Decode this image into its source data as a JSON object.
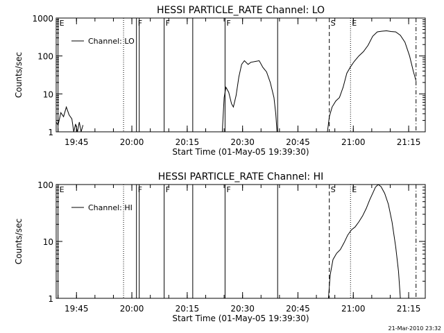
{
  "footer": {
    "timestamp": "21-Mar-2010 23:32"
  },
  "chart_data": [
    {
      "type": "line",
      "title": "HESSI PARTICLE_RATE Channel: LO",
      "xlabel": "Start Time (01-May-05 19:39:30)",
      "ylabel": "Counts/sec",
      "yscale": "log",
      "xlim": [
        "19:39:30",
        "21:19:30"
      ],
      "ylim": [
        1,
        1000
      ],
      "x_ticks": [
        "19:45",
        "20:00",
        "20:15",
        "20:30",
        "20:45",
        "21:00",
        "21:15"
      ],
      "y_ticks": [
        "1",
        "10",
        "100",
        "1000"
      ],
      "legend": {
        "label": "Channel: LO",
        "position": "top-left"
      },
      "markers": [
        {
          "time": "19:40:00",
          "label": "E",
          "style": "solid"
        },
        {
          "time": "19:57:45",
          "label": "",
          "style": "dotted"
        },
        {
          "time": "20:01:15",
          "label": "F",
          "style": "solid"
        },
        {
          "time": "20:02:00",
          "label": "",
          "style": "solid"
        },
        {
          "time": "20:08:45",
          "label": "F",
          "style": "solid"
        },
        {
          "time": "20:16:30",
          "label": "",
          "style": "solid"
        },
        {
          "time": "20:25:15",
          "label": "F",
          "style": "solid"
        },
        {
          "time": "20:39:30",
          "label": "",
          "style": "solid"
        },
        {
          "time": "20:53:30",
          "label": "S",
          "style": "dashed"
        },
        {
          "time": "20:59:15",
          "label": "E",
          "style": "dotted"
        },
        {
          "time": "21:17:00",
          "label": "",
          "style": "dashdot"
        }
      ],
      "series": [
        {
          "segments": [
            [
              [
                "19:39:30",
                1.8
              ],
              [
                "19:40:00",
                1.5
              ],
              [
                "19:40:45",
                3.2
              ],
              [
                "19:41:30",
                2.5
              ],
              [
                "19:42:15",
                4.5
              ],
              [
                "19:43:00",
                2.8
              ],
              [
                "19:43:45",
                2.2
              ],
              [
                "19:44:15",
                1.0
              ],
              [
                "19:44:45",
                1.6
              ],
              [
                "19:45:15",
                1.0
              ],
              [
                "19:45:45",
                1.8
              ],
              [
                "19:46:15",
                1.0
              ],
              [
                "19:46:45",
                1.5
              ]
            ],
            [
              [
                "20:24:30",
                1.0
              ],
              [
                "20:25:00",
                8.0
              ],
              [
                "20:25:30",
                15
              ],
              [
                "20:26:15",
                11
              ],
              [
                "20:27:00",
                5.5
              ],
              [
                "20:27:30",
                4.5
              ],
              [
                "20:28:15",
                9
              ],
              [
                "20:29:00",
                28
              ],
              [
                "20:29:45",
                60
              ],
              [
                "20:30:30",
                75
              ],
              [
                "20:31:30",
                60
              ],
              [
                "20:32:15",
                68
              ],
              [
                "20:33:30",
                72
              ],
              [
                "20:34:30",
                75
              ],
              [
                "20:35:30",
                50
              ],
              [
                "20:36:30",
                38
              ],
              [
                "20:37:30",
                20
              ],
              [
                "20:38:30",
                8
              ],
              [
                "20:39:00",
                3
              ],
              [
                "20:39:20",
                1.0
              ]
            ],
            [
              [
                "20:53:00",
                1.0
              ],
              [
                "20:53:30",
                2.5
              ],
              [
                "20:54:15",
                4.5
              ],
              [
                "20:55:15",
                6.5
              ],
              [
                "20:56:15",
                8
              ],
              [
                "20:57:15",
                15
              ],
              [
                "20:58:15",
                35
              ],
              [
                "20:59:15",
                52
              ],
              [
                "21:00:15",
                72
              ],
              [
                "21:01:30",
                100
              ],
              [
                "21:02:45",
                130
              ],
              [
                "21:04:00",
                190
              ],
              [
                "21:05:15",
                330
              ],
              [
                "21:06:30",
                430
              ],
              [
                "21:07:45",
                450
              ],
              [
                "21:09:00",
                460
              ],
              [
                "21:10:15",
                440
              ],
              [
                "21:11:30",
                430
              ],
              [
                "21:12:45",
                350
              ],
              [
                "21:14:00",
                230
              ],
              [
                "21:15:15",
                100
              ],
              [
                "21:16:15",
                40
              ],
              [
                "21:17:00",
                22
              ]
            ]
          ]
        }
      ]
    },
    {
      "type": "line",
      "title": "HESSI PARTICLE_RATE Channel: HI",
      "xlabel": "Start Time (01-May-05 19:39:30)",
      "ylabel": "Counts/sec",
      "yscale": "log",
      "xlim": [
        "19:39:30",
        "21:19:30"
      ],
      "ylim": [
        1,
        100
      ],
      "x_ticks": [
        "19:45",
        "20:00",
        "20:15",
        "20:30",
        "20:45",
        "21:00",
        "21:15"
      ],
      "y_ticks": [
        "1",
        "10",
        "100"
      ],
      "legend": {
        "label": "Channel: HI",
        "position": "top-left"
      },
      "markers": [
        {
          "time": "19:40:00",
          "label": "E",
          "style": "solid"
        },
        {
          "time": "19:57:45",
          "label": "",
          "style": "dotted"
        },
        {
          "time": "20:01:15",
          "label": "F",
          "style": "solid"
        },
        {
          "time": "20:02:00",
          "label": "",
          "style": "solid"
        },
        {
          "time": "20:08:45",
          "label": "F",
          "style": "solid"
        },
        {
          "time": "20:16:30",
          "label": "",
          "style": "solid"
        },
        {
          "time": "20:25:15",
          "label": "F",
          "style": "solid"
        },
        {
          "time": "20:39:30",
          "label": "",
          "style": "solid"
        },
        {
          "time": "20:53:30",
          "label": "S",
          "style": "dashed"
        },
        {
          "time": "20:59:15",
          "label": "E",
          "style": "dotted"
        },
        {
          "time": "21:17:00",
          "label": "",
          "style": "dashdot"
        }
      ],
      "series": [
        {
          "segments": [
            [
              [
                "20:53:15",
                1.0
              ],
              [
                "20:53:45",
                2.6
              ],
              [
                "20:54:30",
                4.8
              ],
              [
                "20:55:30",
                6.2
              ],
              [
                "20:56:30",
                7.2
              ],
              [
                "20:57:30",
                9.5
              ],
              [
                "20:58:30",
                13
              ],
              [
                "20:59:30",
                16
              ],
              [
                "21:00:30",
                18
              ],
              [
                "21:01:30",
                22
              ],
              [
                "21:02:30",
                28
              ],
              [
                "21:03:30",
                38
              ],
              [
                "21:04:30",
                55
              ],
              [
                "21:05:15",
                70
              ],
              [
                "21:06:00",
                90
              ],
              [
                "21:06:45",
                100
              ],
              [
                "21:07:30",
                92
              ],
              [
                "21:08:30",
                70
              ],
              [
                "21:09:30",
                45
              ],
              [
                "21:10:30",
                22
              ],
              [
                "21:11:30",
                8
              ],
              [
                "21:12:15",
                3
              ],
              [
                "21:12:45",
                1.0
              ]
            ]
          ]
        }
      ]
    }
  ]
}
